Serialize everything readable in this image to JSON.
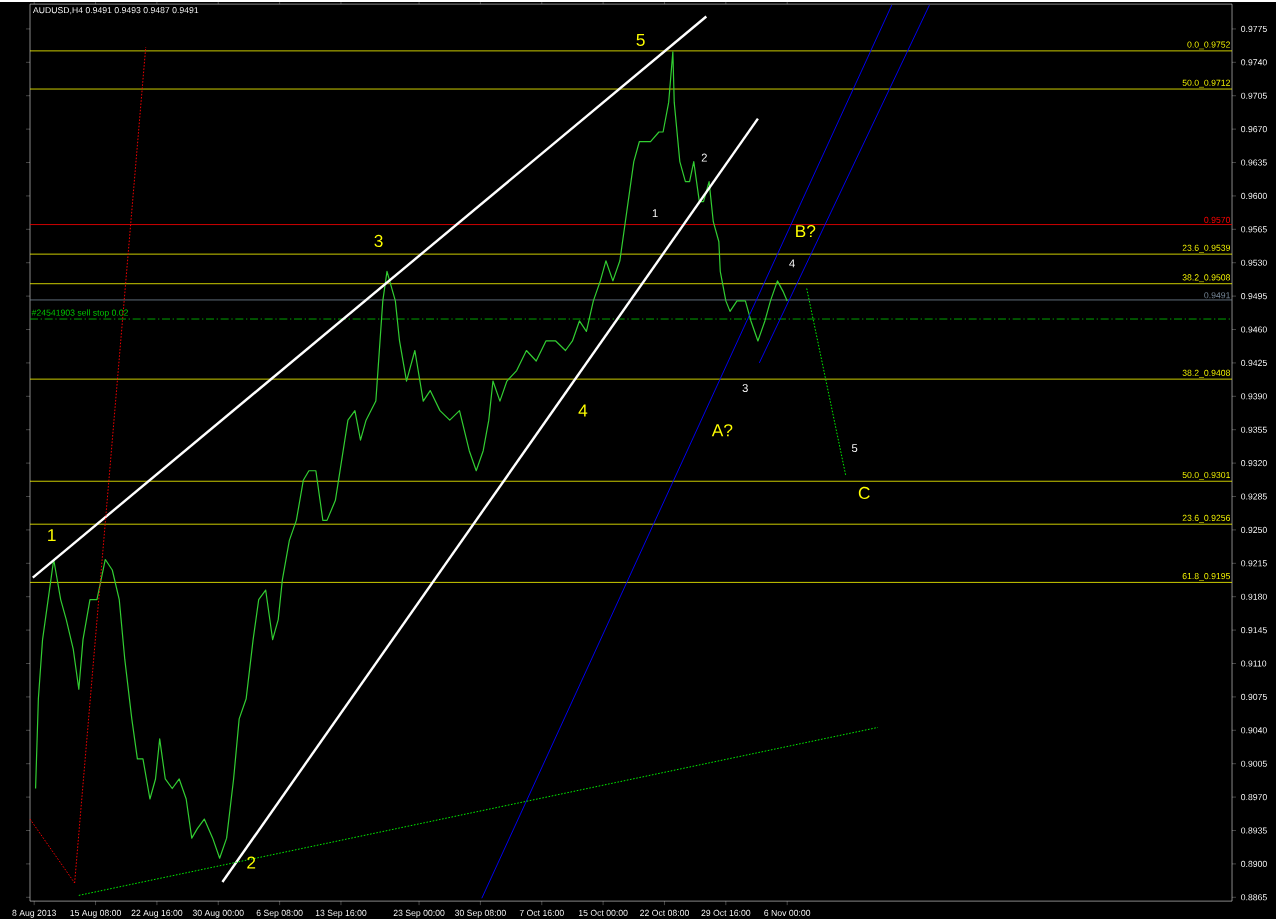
{
  "chart_data": {
    "type": "line",
    "title": "AUDUSD,H4 0.9491 0.9493 0.9487 0.9491",
    "xlim": [
      "2013-08-07T12:00",
      "2013-12-29T04:00"
    ],
    "ylim": [
      0.8861,
      0.9801
    ],
    "xticks": [
      {
        "value": "2013-08-08T00:00",
        "label": "8 Aug 2013"
      },
      {
        "value": "2013-08-15T08:00",
        "label": "15 Aug 08:00"
      },
      {
        "value": "2013-08-22T16:00",
        "label": "22 Aug 16:00"
      },
      {
        "value": "2013-08-30T00:00",
        "label": "30 Aug 00:00"
      },
      {
        "value": "2013-09-06T08:00",
        "label": "6 Sep 08:00"
      },
      {
        "value": "2013-09-13T16:00",
        "label": "13 Sep 16:00"
      },
      {
        "value": "2013-09-23T00:00",
        "label": "23 Sep 00:00"
      },
      {
        "value": "2013-09-30T08:00",
        "label": "30 Sep 08:00"
      },
      {
        "value": "2013-10-07T16:00",
        "label": "7 Oct 16:00"
      },
      {
        "value": "2013-10-15T00:00",
        "label": "15 Oct 00:00"
      },
      {
        "value": "2013-10-22T08:00",
        "label": "22 Oct 08:00"
      },
      {
        "value": "2013-10-29T16:00",
        "label": "29 Oct 16:00"
      },
      {
        "value": "2013-11-06T00:00",
        "label": "6 Nov 00:00"
      }
    ],
    "yticks": [
      0.9775,
      {
        "value": 0.974,
        "label": "0.9740"
      },
      0.9705,
      {
        "value": 0.967,
        "label": "0.9670"
      },
      0.9635,
      {
        "value": 0.96,
        "label": "0.9600"
      },
      0.9565,
      {
        "value": 0.953,
        "label": "0.9530"
      },
      0.9495,
      {
        "value": 0.946,
        "label": "0.9460"
      },
      0.9425,
      {
        "value": 0.939,
        "label": "0.9390"
      },
      0.9355,
      {
        "value": 0.932,
        "label": "0.9320"
      },
      0.9285,
      {
        "value": 0.925,
        "label": "0.9250"
      },
      0.9215,
      {
        "value": 0.918,
        "label": "0.9180"
      },
      0.9145,
      {
        "value": 0.911,
        "label": "0.9110"
      },
      0.9075,
      {
        "value": 0.904,
        "label": "0.9040"
      },
      0.9005,
      {
        "value": 0.897,
        "label": "0.8970"
      },
      0.8935,
      {
        "value": 0.89,
        "label": "0.8900"
      },
      0.8865
    ],
    "series": [
      {
        "color": "#32cd32",
        "line_style": "solid",
        "x": [
          "2013-08-08T04:00",
          "2013-08-08T12:00",
          "2013-08-09T00:00",
          "2013-08-09T16:00",
          "2013-08-10T08:00",
          "2013-08-11T04:00",
          "2013-08-11T20:00",
          "2013-08-12T16:00",
          "2013-08-13T08:00",
          "2013-08-13T20:00",
          "2013-08-14T16:00",
          "2013-08-15T12:00",
          "2013-08-16T12:00",
          "2013-08-17T08:00",
          "2013-08-18T04:00",
          "2013-08-18T20:00",
          "2013-08-19T16:00",
          "2013-08-20T08:00",
          "2013-08-21T00:00",
          "2013-08-21T20:00",
          "2013-08-22T12:00",
          "2013-08-23T00:00",
          "2013-08-23T16:00",
          "2013-08-24T12:00",
          "2013-08-25T08:00",
          "2013-08-26T04:00",
          "2013-08-26T20:00",
          "2013-08-27T12:00",
          "2013-08-28T08:00",
          "2013-08-29T08:00",
          "2013-08-30T04:00",
          "2013-08-31T00:00",
          "2013-08-31T20:00",
          "2013-09-01T12:00",
          "2013-09-02T08:00",
          "2013-09-03T04:00",
          "2013-09-03T20:00",
          "2013-09-04T16:00",
          "2013-09-05T12:00",
          "2013-09-06T04:00",
          "2013-09-06T16:00",
          "2013-09-07T12:00",
          "2013-09-08T08:00",
          "2013-09-09T04:00",
          "2013-09-09T20:00",
          "2013-09-10T16:00",
          "2013-09-11T04:00",
          "2013-09-11T12:00",
          "2013-09-12T00:00",
          "2013-09-13T00:00",
          "2013-09-14T12:00",
          "2013-09-15T08:00",
          "2013-09-16T00:00",
          "2013-09-16T16:00",
          "2013-09-17T20:00",
          "2013-09-18T16:00",
          "2013-09-19T04:00",
          "2013-09-20T04:00",
          "2013-09-20T16:00",
          "2013-09-21T12:00",
          "2013-09-22T12:00",
          "2013-09-23T12:00",
          "2013-09-24T08:00",
          "2013-09-25T12:00",
          "2013-09-26T16:00",
          "2013-09-27T20:00",
          "2013-09-29T00:00",
          "2013-09-29T20:00",
          "2013-09-30T16:00",
          "2013-10-01T08:00",
          "2013-10-01T20:00",
          "2013-10-02T16:00",
          "2013-10-03T12:00",
          "2013-10-04T16:00",
          "2013-10-05T20:00",
          "2013-10-07T00:00",
          "2013-10-08T04:00",
          "2013-10-09T08:00",
          "2013-10-10T12:00",
          "2013-10-11T08:00",
          "2013-10-12T04:00",
          "2013-10-13T00:00",
          "2013-10-13T20:00",
          "2013-10-14T16:00",
          "2013-10-15T08:00",
          "2013-10-16T04:00",
          "2013-10-17T00:00",
          "2013-10-17T20:00",
          "2013-10-18T16:00",
          "2013-10-19T08:00",
          "2013-10-20T00:00",
          "2013-10-20T16:00",
          "2013-10-21T16:00",
          "2013-10-22T04:00",
          "2013-10-22T20:00",
          "2013-10-23T08:00",
          "2013-10-23T12:00",
          "2013-10-24T04:00",
          "2013-10-24T20:00",
          "2013-10-25T08:00",
          "2013-10-25T20:00",
          "2013-10-26T12:00",
          "2013-10-27T00:00",
          "2013-10-27T16:00",
          "2013-10-28T04:00",
          "2013-10-28T20:00",
          "2013-10-29T00:00",
          "2013-10-29T16:00",
          "2013-10-30T04:00",
          "2013-10-31T00:00",
          "2013-11-01T00:00",
          "2013-11-01T16:00",
          "2013-11-02T12:00",
          "2013-11-03T08:00",
          "2013-11-04T00:00",
          "2013-11-04T20:00",
          "2013-11-05T12:00",
          "2013-11-06T00:00"
        ],
        "values": [
          0.8979,
          0.9073,
          0.9135,
          0.9177,
          0.9219,
          0.9177,
          0.9156,
          0.9125,
          0.9083,
          0.9135,
          0.9177,
          0.9177,
          0.9219,
          0.9208,
          0.9177,
          0.9114,
          0.9052,
          0.901,
          0.901,
          0.8968,
          0.8989,
          0.9031,
          0.8989,
          0.8979,
          0.8989,
          0.8968,
          0.8927,
          0.8937,
          0.8947,
          0.8927,
          0.8906,
          0.8927,
          0.8989,
          0.9052,
          0.9073,
          0.9135,
          0.9177,
          0.9187,
          0.9135,
          0.9156,
          0.9198,
          0.9239,
          0.926,
          0.9302,
          0.9312,
          0.9312,
          0.9281,
          0.926,
          0.926,
          0.9281,
          0.9365,
          0.9375,
          0.9344,
          0.9365,
          0.9385,
          0.949,
          0.9521,
          0.949,
          0.9448,
          0.9406,
          0.9438,
          0.9385,
          0.9396,
          0.9375,
          0.9365,
          0.9375,
          0.9333,
          0.9312,
          0.9333,
          0.9365,
          0.9406,
          0.9385,
          0.9406,
          0.9417,
          0.9438,
          0.9427,
          0.9448,
          0.9448,
          0.9438,
          0.9448,
          0.9469,
          0.9458,
          0.949,
          0.9511,
          0.9532,
          0.9511,
          0.9532,
          0.9584,
          0.9636,
          0.9657,
          0.9657,
          0.9657,
          0.9667,
          0.9667,
          0.9698,
          0.9751,
          0.9698,
          0.9636,
          0.9615,
          0.9615,
          0.9636,
          0.9594,
          0.9594,
          0.9615,
          0.9573,
          0.9552,
          0.9521,
          0.949,
          0.9479,
          0.949,
          0.949,
          0.9469,
          0.9448,
          0.9469,
          0.949,
          0.9511,
          0.95,
          0.949
        ]
      },
      {
        "color": "#ffffff",
        "line_style": "solid",
        "x": [
          "2013-08-07T20:00",
          "2013-10-27T08:00"
        ],
        "values": [
          0.92,
          0.9788
        ]
      },
      {
        "color": "#ffffff",
        "line_style": "solid",
        "x": [
          "2013-08-30T12:00",
          "2013-11-02T12:00"
        ],
        "values": [
          0.8881,
          0.9681
        ]
      },
      {
        "color": "#0000ff",
        "line_style": "solid",
        "x": [
          "2013-09-30T12:00",
          "2013-11-18T12:00"
        ],
        "values": [
          0.8864,
          0.98
        ]
      },
      {
        "color": "#0000ff",
        "line_style": "solid",
        "x": [
          "2013-11-02T16:00",
          "2013-11-23T00:00"
        ],
        "values": [
          0.9425,
          0.98
        ]
      },
      {
        "color": "#00ff00",
        "line_style": "dotted",
        "x": [
          "2013-08-13T08:00",
          "2013-11-16T20:00"
        ],
        "values": [
          0.8867,
          0.9043
        ]
      },
      {
        "color": "#00ff00",
        "line_style": "dotted",
        "x": [
          "2013-11-08T08:00",
          "2013-11-13T00:00"
        ],
        "values": [
          0.9503,
          0.9307
        ]
      },
      {
        "color": "#ff0000",
        "line_style": "dotted",
        "x": [
          "2013-08-12T20:00",
          "2013-08-21T08:00"
        ],
        "values": [
          0.888,
          0.9756
        ]
      },
      {
        "color": "#ff0000",
        "line_style": "dotted",
        "x": [
          "2013-08-07T12:00",
          "2013-08-12T20:00"
        ],
        "values": [
          0.8947,
          0.888
        ]
      }
    ],
    "ref_lines": [
      {
        "axis": "y",
        "value": 0.9752,
        "label": "0.0_0.9752",
        "color": "#ffff00",
        "line_style": "solid"
      },
      {
        "axis": "y",
        "value": 0.9712,
        "label": "50.0_0.9712",
        "color": "#ffff00",
        "line_style": "solid"
      },
      {
        "axis": "y",
        "value": 0.957,
        "label": "0.9570",
        "color": "#ff0000",
        "line_style": "solid"
      },
      {
        "axis": "y",
        "value": 0.9539,
        "label": "23.6_0.9539",
        "color": "#ffff00",
        "line_style": "solid"
      },
      {
        "axis": "y",
        "value": 0.9508,
        "label": "38.2_0.9508",
        "color": "#ffff00",
        "line_style": "solid"
      },
      {
        "axis": "y",
        "value": 0.9491,
        "label": "0.9491",
        "color": "#778899",
        "line_style": "solid"
      },
      {
        "axis": "y",
        "value": 0.9471,
        "label": "#24541903 sell stop 0.02",
        "color": "#00cc00",
        "line_style": "dashed"
      },
      {
        "axis": "y",
        "value": 0.9408,
        "label": "38.2_0.9408",
        "color": "#ffff00",
        "line_style": "solid"
      },
      {
        "axis": "y",
        "value": 0.9301,
        "label": "50.0_0.9301",
        "color": "#ffff00",
        "line_style": "solid"
      },
      {
        "axis": "y",
        "value": 0.9256,
        "label": "23.6_0.9256",
        "color": "#ffff00",
        "line_style": "solid"
      },
      {
        "axis": "y",
        "value": 0.9195,
        "label": "61.8_0.9195",
        "color": "#ffff00",
        "line_style": "solid"
      }
    ],
    "annotations": [
      "1",
      "2",
      "3",
      "4",
      "5",
      "A?",
      "B?",
      "C",
      "1",
      "2",
      "3",
      "4",
      "5"
    ]
  }
}
